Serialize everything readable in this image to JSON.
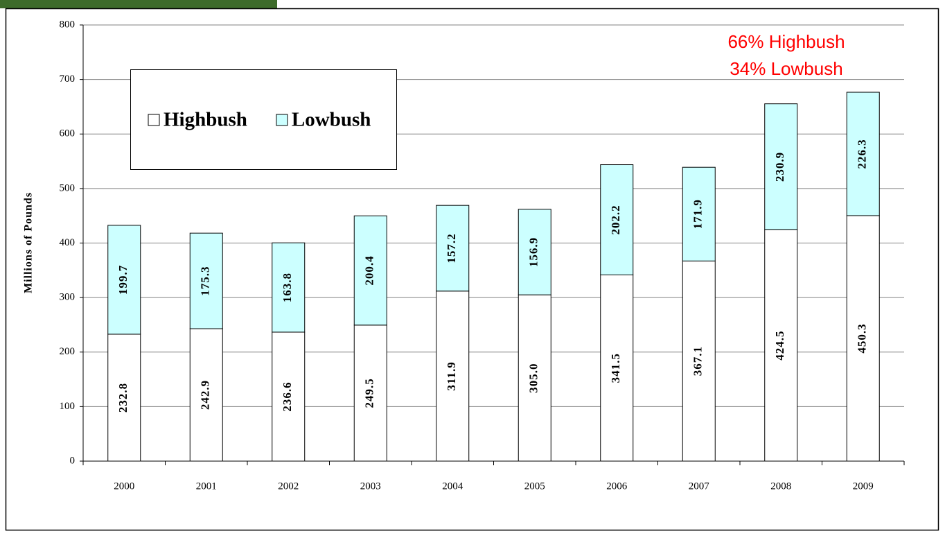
{
  "chart_data": {
    "type": "stacked_bar",
    "y_label": "Millions of Pounds",
    "annotations": [
      "66% Highbush",
      "34% Lowbush"
    ],
    "categories": [
      "2000",
      "2001",
      "2002",
      "2003",
      "2004",
      "2005",
      "2006",
      "2007",
      "2008",
      "2009"
    ],
    "series": [
      {
        "name": "Highbush",
        "color": "#ffffff",
        "values": [
          232.8,
          242.9,
          236.6,
          249.5,
          311.9,
          305.0,
          341.5,
          367.1,
          424.5,
          450.3
        ],
        "value_labels": [
          "232.8",
          "242.9",
          "236.6",
          "249.5",
          "311.9",
          "305.0",
          "341.5",
          "367.1",
          "424.5",
          "450.3"
        ]
      },
      {
        "name": "Lowbush",
        "color": "#ccffff",
        "values": [
          199.7,
          175.3,
          163.8,
          200.4,
          157.2,
          156.9,
          202.2,
          171.9,
          230.9,
          226.3
        ]
      }
    ],
    "ylim": [
      0,
      800
    ],
    "yticks": [
      0,
      100,
      200,
      300,
      400,
      500,
      600,
      700,
      800
    ],
    "grid": true
  }
}
